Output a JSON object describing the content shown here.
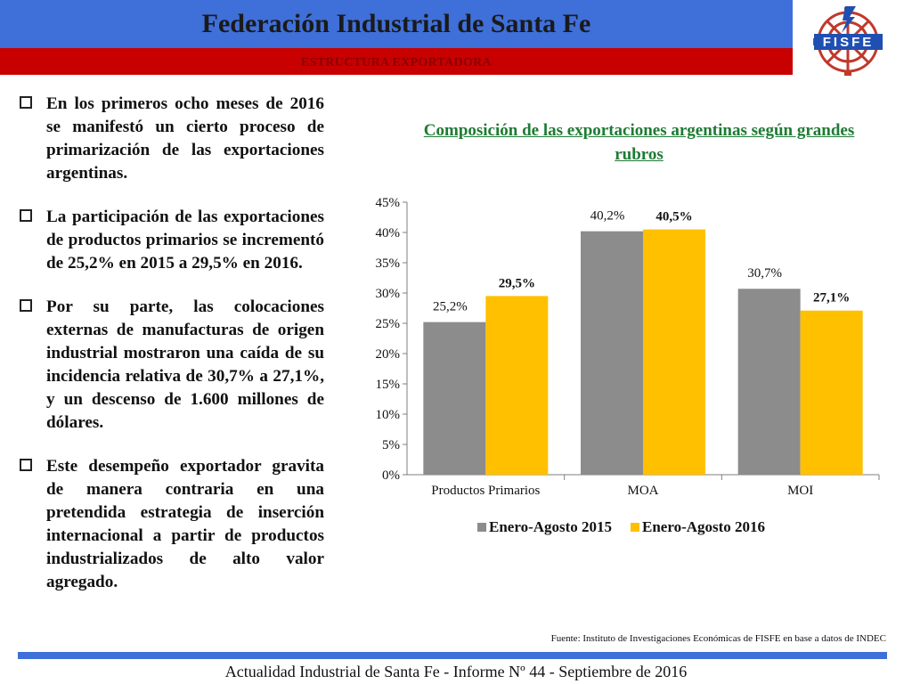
{
  "header": {
    "title": "Federación Industrial de Santa Fe",
    "subtitle": "ESTRUCTURA EXPORTADORA",
    "logo_text": "FISFE",
    "colors": {
      "blue": "#3f6fd8",
      "red": "#c80000"
    }
  },
  "bullets": [
    "En los primeros ocho meses de 2016 se manifestó un cierto proceso de primarización de las exportaciones argentinas.",
    "La participación de las exportaciones de productos primarios se incrementó de 25,2% en 2015 a 29,5% en 2016.",
    "Por su parte, las colocaciones externas de manufacturas de origen industrial mostraron una caída de su incidencia relativa de 30,7% a 27,1%, y un descenso de 1.600 millones de dólares.",
    "Este desempeño exportador gravita de manera contraria en una pretendida estrategia de inserción internacional a partir de productos industrializados de alto valor agregado."
  ],
  "chart_data": {
    "type": "bar",
    "title": "Composición de las exportaciones argentinas según grandes rubros",
    "categories": [
      "Productos Primarios",
      "MOA",
      "MOI"
    ],
    "series": [
      {
        "name": "Enero-Agosto 2015",
        "values": [
          25.2,
          40.2,
          30.7
        ],
        "labels": [
          "25,2%",
          "40,2%",
          "30,7%"
        ],
        "color": "#8c8c8c"
      },
      {
        "name": "Enero-Agosto 2016",
        "values": [
          29.5,
          40.5,
          27.1
        ],
        "labels": [
          "29,5%",
          "40,5%",
          "27,1%"
        ],
        "color": "#ffc000"
      }
    ],
    "ylim": [
      0,
      45
    ],
    "yticks": [
      "0%",
      "5%",
      "10%",
      "15%",
      "20%",
      "25%",
      "30%",
      "35%",
      "40%",
      "45%"
    ],
    "xlabel": "",
    "ylabel": "",
    "legend": "bottom",
    "grid": false
  },
  "source": "Fuente: Instituto de Investigaciones Económicas de  FISFE en base a datos de INDEC",
  "footer": "Actualidad Industrial de Santa Fe - Informe Nº 44 - Septiembre de 2016"
}
